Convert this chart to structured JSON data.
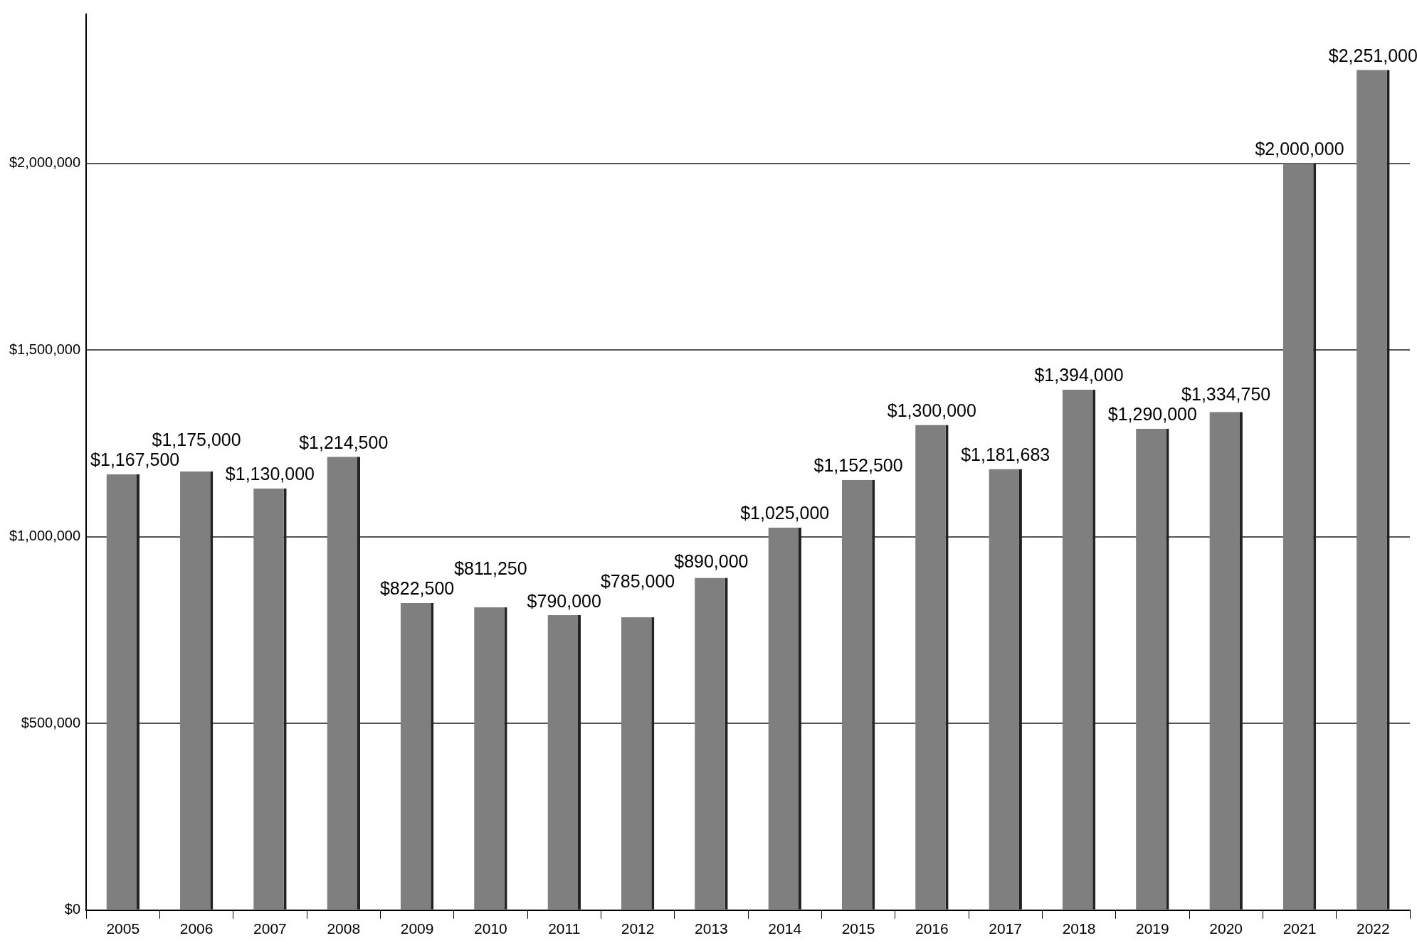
{
  "chart_data": {
    "type": "bar",
    "categories": [
      "2005",
      "2006",
      "2007",
      "2008",
      "2009",
      "2010",
      "2011",
      "2012",
      "2013",
      "2014",
      "2015",
      "2016",
      "2017",
      "2018",
      "2019",
      "2020",
      "2021",
      "2022"
    ],
    "values": [
      1167500,
      1175000,
      1130000,
      1214500,
      822500,
      811250,
      790000,
      785000,
      890000,
      1025000,
      1152500,
      1300000,
      1181683,
      1394000,
      1290000,
      1334750,
      2000000,
      2251000
    ],
    "value_labels": [
      "$1,167,500",
      "$1,175,000",
      "$1,130,000",
      "$1,214,500",
      "$822,500",
      "$811,250",
      "$790,000",
      "$785,000",
      "$890,000",
      "$1,025,000",
      "$1,152,500",
      "$1,300,000",
      "$1,181,683",
      "$1,394,000",
      "$1,290,000",
      "$1,334,750",
      "$2,000,000",
      "$2,251,000"
    ],
    "color": "#7f7f7f",
    "ylim": [
      0,
      2400000
    ],
    "yticks": [
      {
        "value": 0,
        "label": "$0"
      },
      {
        "value": 500000,
        "label": "$500,000"
      },
      {
        "value": 1000000,
        "label": "$1,000,000"
      },
      {
        "value": 1500000,
        "label": "$1,500,000"
      },
      {
        "value": 2000000,
        "label": "$2,000,000"
      }
    ],
    "grid": "y",
    "legend": false
  }
}
